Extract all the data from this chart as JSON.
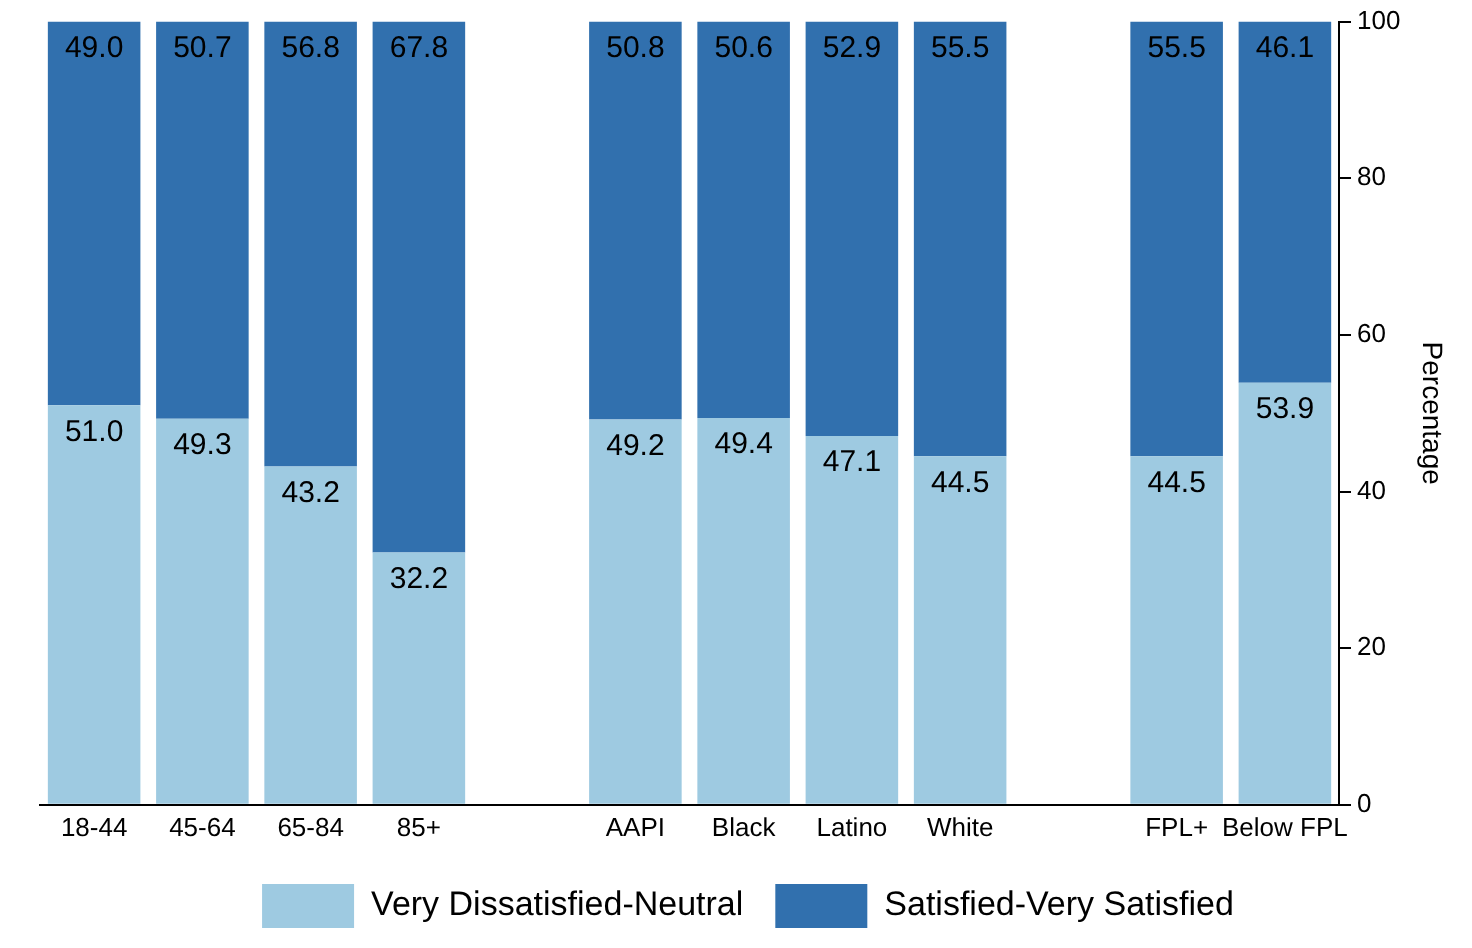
{
  "chart_data": {
    "type": "bar",
    "stacked": true,
    "ylabel": "Percentage",
    "categories": [
      "18-44",
      "45-64",
      "65-84",
      "85+",
      null,
      "AAPI",
      "Black",
      "Latino",
      "White",
      null,
      "FPL+",
      "Below FPL"
    ],
    "series": [
      {
        "name": "Very Dissatisfied-Neutral",
        "color": "#9ecae1",
        "values": [
          51.0,
          49.3,
          43.2,
          32.2,
          null,
          49.2,
          49.4,
          47.1,
          44.5,
          null,
          44.5,
          53.9
        ],
        "value_labels": [
          "51.0",
          "49.3",
          "43.2",
          "32.2",
          null,
          "49.2",
          "49.4",
          "47.1",
          "44.5",
          null,
          "44.5",
          "53.9"
        ]
      },
      {
        "name": "Satisfied-Very Satisfied",
        "color": "#3170ae",
        "values": [
          49.0,
          50.7,
          56.8,
          67.8,
          null,
          50.8,
          50.6,
          52.9,
          55.5,
          null,
          55.5,
          46.1
        ],
        "value_labels": [
          "49.0",
          "50.7",
          "56.8",
          "67.8",
          null,
          "50.8",
          "50.6",
          "52.9",
          "55.5",
          null,
          "55.5",
          "46.1"
        ]
      }
    ],
    "ylim": [
      0,
      100
    ],
    "yticks": [
      0,
      20,
      40,
      60,
      80,
      100
    ],
    "grid": false,
    "legend": "bottom"
  }
}
